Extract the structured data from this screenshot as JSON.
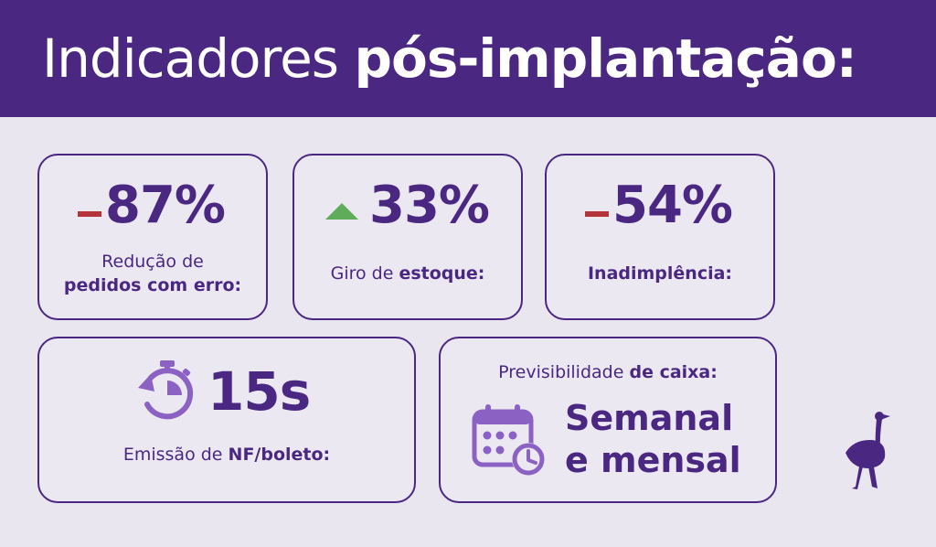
{
  "header": {
    "title_light": "Indicadores",
    "title_bold": "pós-implantação:"
  },
  "cards": [
    {
      "value": "87%",
      "trend": "down",
      "label_line1": "Redução de",
      "label_bold": "pedidos com erro:"
    },
    {
      "value": "33%",
      "trend": "up",
      "label_prefix": "Giro de",
      "label_bold": "estoque:"
    },
    {
      "value": "54%",
      "trend": "down",
      "label_bold": "Inadimplência:"
    },
    {
      "value": "15s",
      "icon": "stopwatch-icon",
      "label_prefix": "Emissão de",
      "label_bold": "NF/boleto:"
    },
    {
      "label_prefix": "Previsibilidade",
      "label_bold": "de caixa:",
      "icon": "calendar-clock-icon",
      "value_line1": "Semanal",
      "value_line2": "e mensal"
    }
  ],
  "colors": {
    "brand_purple": "#4a2882",
    "icon_purple": "#8b62c4",
    "background": "#e9e6ef",
    "down_red": "#b5333b",
    "up_green": "#5fad5a"
  },
  "logo": "ostrich-logo"
}
